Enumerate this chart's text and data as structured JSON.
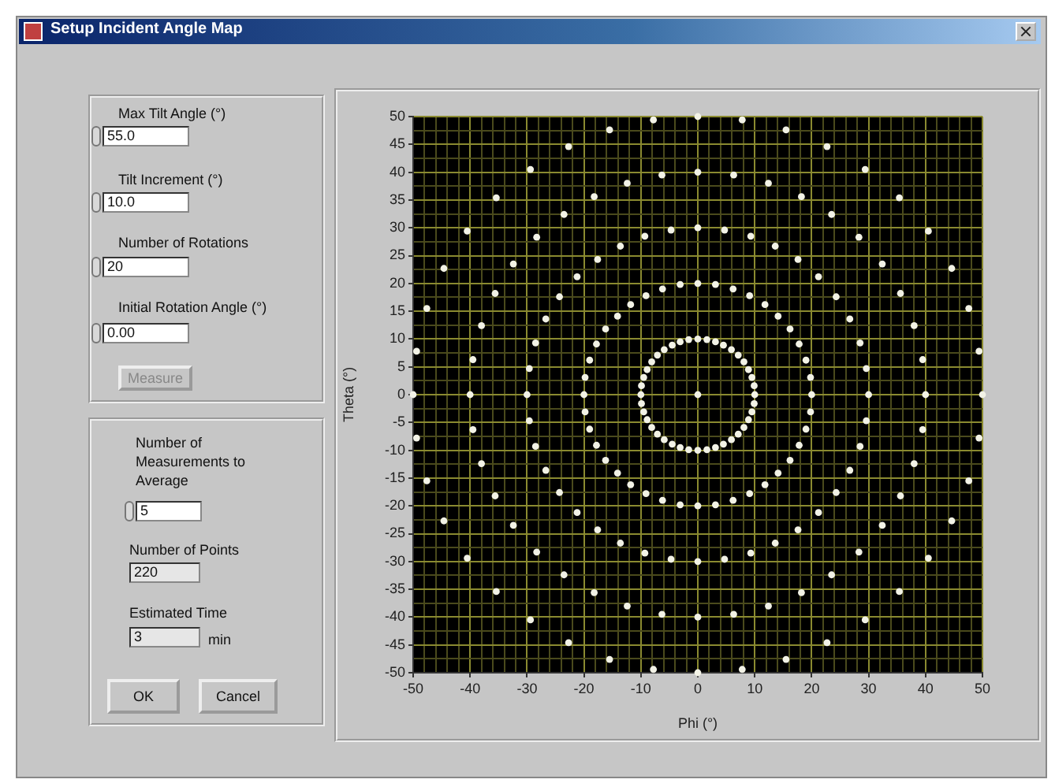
{
  "chart_data": {
    "type": "scatter",
    "title": "Setup Incident Angle Map",
    "xlabel": "Phi (°)",
    "ylabel": "Theta (°)",
    "annotations": [
      "Max Tilt Angle (°)",
      "55.0",
      "Tilt Increment (°)",
      "10.0",
      "Number of Rotations",
      "20",
      "Initial Rotation Angle (°)",
      "0.00",
      "Measure",
      "Number of Measurements to Average",
      "5",
      "Number of Points",
      "220",
      "Estimated Time",
      "3",
      "min",
      "OK",
      "Cancel"
    ],
    "xlim": [
      -50,
      50
    ],
    "ylim": [
      -50,
      50
    ],
    "xticks": [
      -50,
      {
        "value": -48,
        "label": null
      },
      {
        "value": -46,
        "label": null
      },
      {
        "value": -44,
        "label": null
      },
      {
        "value": -42,
        "label": null
      },
      -40,
      {
        "value": -38,
        "label": null
      },
      {
        "value": -36,
        "label": null
      },
      {
        "value": -34,
        "label": null
      },
      {
        "value": -32,
        "label": null
      },
      -30,
      {
        "value": -28,
        "label": null
      },
      {
        "value": -26,
        "label": null
      },
      {
        "value": -24,
        "label": null
      },
      {
        "value": -22,
        "label": null
      },
      -20,
      {
        "value": -18,
        "label": null
      },
      {
        "value": -16,
        "label": null
      },
      {
        "value": -14,
        "label": null
      },
      {
        "value": -12,
        "label": null
      },
      -10,
      {
        "value": -8,
        "label": null
      },
      {
        "value": -6,
        "label": null
      },
      {
        "value": -4,
        "label": null
      },
      {
        "value": -2,
        "label": null
      },
      0,
      {
        "value": 2,
        "label": null
      },
      {
        "value": 4,
        "label": null
      },
      {
        "value": 6,
        "label": null
      },
      {
        "value": 8,
        "label": null
      },
      10,
      {
        "value": 12,
        "label": null
      },
      {
        "value": 14,
        "label": null
      },
      {
        "value": 16,
        "label": null
      },
      {
        "value": 18,
        "label": null
      },
      20,
      {
        "value": 22,
        "label": null
      },
      {
        "value": 24,
        "label": null
      },
      {
        "value": 26,
        "label": null
      },
      {
        "value": 28,
        "label": null
      },
      30,
      {
        "value": 32,
        "label": null
      },
      {
        "value": 34,
        "label": null
      },
      {
        "value": 36,
        "label": null
      },
      {
        "value": 38,
        "label": null
      },
      40,
      {
        "value": 42,
        "label": null
      },
      {
        "value": 44,
        "label": null
      },
      {
        "value": 46,
        "label": null
      },
      {
        "value": 48,
        "label": null
      },
      50
    ],
    "yticks": [
      -50,
      {
        "value": -47.5,
        "label": null
      },
      -45,
      {
        "value": -42.5,
        "label": null
      },
      -40,
      {
        "value": -37.5,
        "label": null
      },
      -35,
      {
        "value": -32.5,
        "label": null
      },
      -30,
      {
        "value": -27.5,
        "label": null
      },
      -25,
      {
        "value": -22.5,
        "label": null
      },
      -20,
      {
        "value": -17.5,
        "label": null
      },
      -15,
      {
        "value": -12.5,
        "label": null
      },
      -10,
      {
        "value": -7.5,
        "label": null
      },
      -5,
      {
        "value": -2.5,
        "label": null
      },
      0,
      {
        "value": 2.5,
        "label": null
      },
      5,
      {
        "value": 7.5,
        "label": null
      },
      10,
      {
        "value": 12.5,
        "label": null
      },
      15,
      {
        "value": 17.5,
        "label": null
      },
      20,
      {
        "value": 22.5,
        "label": null
      },
      25,
      {
        "value": 27.5,
        "label": null
      },
      30,
      {
        "value": 32.5,
        "label": null
      },
      35,
      {
        "value": 37.5,
        "label": null
      },
      40,
      {
        "value": 42.5,
        "label": null
      },
      45,
      {
        "value": 47.5,
        "label": null
      },
      50
    ],
    "grid": true,
    "legend": false,
    "marker": "circle",
    "series": [
      {
        "color": "#f2f2e6",
        "x": [
          0
        ],
        "values": [
          0
        ]
      },
      {
        "color": "#f2f2e6",
        "x": [
          0,
          1.6,
          3.1,
          4.5,
          5.9,
          7.1,
          8.1,
          8.9,
          9.5,
          9.9,
          10,
          9.9,
          9.5,
          8.9,
          8.1,
          7.1,
          5.9,
          4.5,
          3.1,
          1.6,
          0,
          -1.6,
          -3.1,
          -4.5,
          -5.9,
          -7.1,
          -8.1,
          -8.9,
          -9.5,
          -9.9,
          -10,
          -9.9,
          -9.5,
          -8.9,
          -8.1,
          -7.1,
          -5.9,
          -4.5,
          -3.1,
          -1.6
        ],
        "values": [
          10,
          9.9,
          9.5,
          8.9,
          8.1,
          7.1,
          5.9,
          4.5,
          3.1,
          1.6,
          0,
          -1.6,
          -3.1,
          -4.5,
          -5.9,
          -7.1,
          -8.1,
          -8.9,
          -9.5,
          -9.9,
          -10,
          -9.9,
          -9.5,
          -8.9,
          -8.1,
          -7.1,
          -5.9,
          -4.5,
          -3.1,
          -1.6,
          0,
          1.6,
          3.1,
          4.5,
          5.9,
          7.1,
          8.1,
          8.9,
          9.5,
          9.9
        ]
      },
      {
        "color": "#f2f2e6",
        "x": [
          0,
          3.1,
          6.2,
          9.1,
          11.8,
          14.1,
          16.2,
          17.8,
          19,
          19.8,
          20,
          19.8,
          19,
          17.8,
          16.2,
          14.1,
          11.8,
          9.1,
          6.2,
          3.1,
          0,
          -3.1,
          -6.2,
          -9.1,
          -11.8,
          -14.1,
          -16.2,
          -17.8,
          -19,
          -19.8,
          -20,
          -19.8,
          -19,
          -17.8,
          -16.2,
          -14.1,
          -11.8,
          -9.1,
          -6.2,
          -3.1
        ],
        "values": [
          20,
          19.8,
          19,
          17.8,
          16.2,
          14.1,
          11.8,
          9.1,
          6.2,
          3.1,
          0,
          -3.1,
          -6.2,
          -9.1,
          -11.8,
          -14.1,
          -16.2,
          -17.8,
          -19,
          -19.8,
          -20,
          -19.8,
          -19,
          -17.8,
          -16.2,
          -14.1,
          -11.8,
          -9.1,
          -6.2,
          -3.1,
          0,
          3.1,
          6.2,
          9.1,
          11.8,
          14.1,
          16.2,
          17.8,
          19,
          19.8
        ]
      },
      {
        "color": "#f2f2e6",
        "x": [
          0,
          4.7,
          9.3,
          13.6,
          17.6,
          21.2,
          24.3,
          26.7,
          28.5,
          29.6,
          30,
          29.6,
          28.5,
          26.7,
          24.3,
          21.2,
          17.6,
          13.6,
          9.3,
          4.7,
          0,
          -4.7,
          -9.3,
          -13.6,
          -17.6,
          -21.2,
          -24.3,
          -26.7,
          -28.5,
          -29.6,
          -30,
          -29.6,
          -28.5,
          -26.7,
          -24.3,
          -21.2,
          -17.6,
          -13.6,
          -9.3,
          -4.7
        ],
        "values": [
          30,
          29.6,
          28.5,
          26.7,
          24.3,
          21.2,
          17.6,
          13.6,
          9.3,
          4.7,
          0,
          -4.7,
          -9.3,
          -13.6,
          -17.6,
          -21.2,
          -24.3,
          -26.7,
          -28.5,
          -29.6,
          -30,
          -29.6,
          -28.5,
          -26.7,
          -24.3,
          -21.2,
          -17.6,
          -13.6,
          -9.3,
          -4.7,
          0,
          4.7,
          9.3,
          13.6,
          17.6,
          21.2,
          24.3,
          26.7,
          28.5,
          29.6
        ]
      },
      {
        "color": "#f2f2e6",
        "x": [
          0,
          6.3,
          12.4,
          18.2,
          23.5,
          28.3,
          32.4,
          35.6,
          38,
          39.5,
          40,
          39.5,
          38,
          35.6,
          32.4,
          28.3,
          23.5,
          18.2,
          12.4,
          6.3,
          0,
          -6.3,
          -12.4,
          -18.2,
          -23.5,
          -28.3,
          -32.4,
          -35.6,
          -38,
          -39.5,
          -40,
          -39.5,
          -38,
          -35.6,
          -32.4,
          -28.3,
          -23.5,
          -18.2,
          -12.4,
          -6.3
        ],
        "values": [
          40,
          39.5,
          38,
          35.6,
          32.4,
          28.3,
          23.5,
          18.2,
          12.4,
          6.3,
          0,
          -6.3,
          -12.4,
          -18.2,
          -23.5,
          -28.3,
          -32.4,
          -35.6,
          -38,
          -39.5,
          -40,
          -39.5,
          -38,
          -35.6,
          -32.4,
          -28.3,
          -23.5,
          -18.2,
          -12.4,
          -6.3,
          0,
          6.3,
          12.4,
          18.2,
          23.5,
          28.3,
          32.4,
          35.6,
          38,
          39.5
        ]
      },
      {
        "color": "#f2f2e6",
        "x": [
          0,
          7.8,
          15.5,
          22.7,
          29.4,
          35.4,
          40.5,
          44.6,
          47.6,
          49.4,
          50,
          49.4,
          47.6,
          44.6,
          40.5,
          35.4,
          29.4,
          22.7,
          15.5,
          7.8,
          0,
          -7.8,
          -15.5,
          -22.7,
          -29.4,
          -35.4,
          -40.5,
          -44.6,
          -47.6,
          -49.4,
          -50,
          -49.4,
          -47.6,
          -44.6,
          -40.5,
          -35.4,
          -29.4,
          -22.7,
          -15.5,
          -7.8
        ],
        "values": [
          50,
          49.4,
          47.6,
          44.6,
          40.5,
          35.4,
          29.4,
          22.7,
          15.5,
          7.8,
          0,
          -7.8,
          -15.5,
          -22.7,
          -29.4,
          -35.4,
          -40.5,
          -44.6,
          -47.6,
          -49.4,
          -50,
          -49.4,
          -47.6,
          -44.6,
          -40.5,
          -35.4,
          -29.4,
          -22.7,
          -15.5,
          -7.8,
          0,
          7.8,
          15.5,
          22.7,
          29.4,
          35.4,
          40.5,
          44.6,
          47.6,
          49.4
        ]
      }
    ]
  }
}
